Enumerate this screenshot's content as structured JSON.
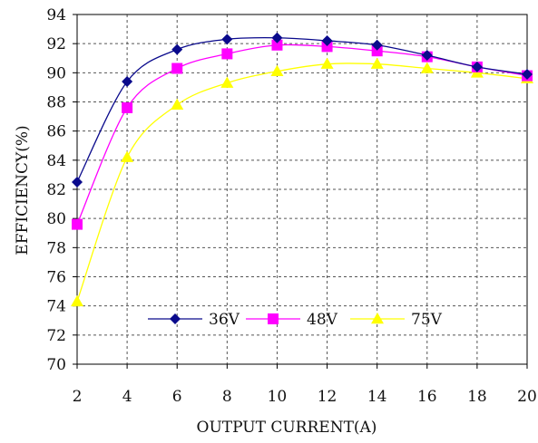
{
  "chart_data": {
    "type": "line",
    "xlabel": "OUTPUT CURRENT(A)",
    "ylabel": "EFFICIENCY(%)",
    "x": [
      2,
      4,
      6,
      8,
      10,
      12,
      14,
      16,
      18,
      20
    ],
    "xlim": [
      2,
      20
    ],
    "ylim": [
      70,
      94
    ],
    "x_ticks": [
      "2",
      "4",
      "6",
      "8",
      "10",
      "12",
      "14",
      "16",
      "18",
      "20"
    ],
    "y_ticks": [
      "70",
      "72",
      "74",
      "76",
      "78",
      "80",
      "82",
      "84",
      "86",
      "88",
      "90",
      "92",
      "94"
    ],
    "grid": true,
    "legend_position": "bottom-center",
    "series": [
      {
        "name": "36V",
        "color": "#0a0a8c",
        "marker": "diamond",
        "values": [
          82.5,
          89.4,
          91.6,
          92.3,
          92.4,
          92.2,
          91.9,
          91.2,
          90.4,
          89.9
        ]
      },
      {
        "name": "48V",
        "color": "#ff00ff",
        "marker": "square",
        "values": [
          79.6,
          87.6,
          90.3,
          91.3,
          91.9,
          91.8,
          91.5,
          91.1,
          90.4,
          89.8
        ]
      },
      {
        "name": "75V",
        "color": "#ffff00",
        "marker": "triangle",
        "values": [
          74.3,
          84.2,
          87.8,
          89.3,
          90.1,
          90.6,
          90.6,
          90.3,
          90.0,
          89.6
        ]
      }
    ]
  }
}
